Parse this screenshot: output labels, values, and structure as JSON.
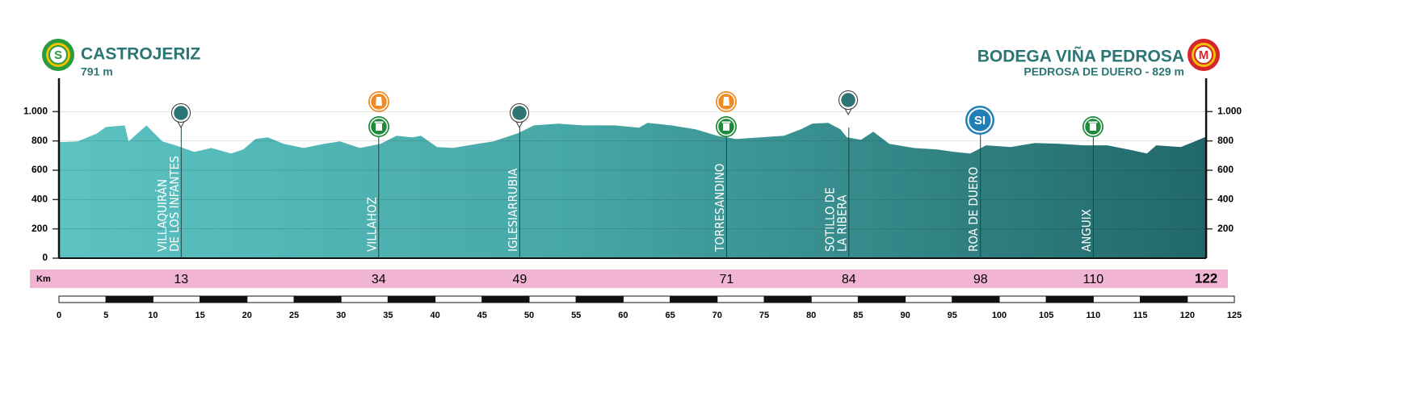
{
  "chart_data": {
    "type": "area",
    "start": {
      "badge": "S",
      "name": "CASTROJERIZ",
      "altitude_label": "791 m"
    },
    "finish": {
      "badge": "M",
      "name": "BODEGA VIÑA PEDROSA",
      "subtitle": "PEDROSA DE DUERO - 829 m",
      "km": 122
    },
    "x": [
      0,
      2.0,
      4.0,
      5.0,
      7.0,
      7.4,
      9.3,
      11.0,
      12.4,
      14.4,
      16.2,
      18.3,
      19.6,
      20.9,
      22.2,
      23.9,
      26.0,
      28.2,
      29.9,
      32.0,
      34.2,
      35.9,
      37.6,
      38.5,
      40.2,
      41.9,
      44.5,
      46.2,
      48.8,
      50.5,
      53.1,
      55.7,
      59.1,
      61.7,
      62.6,
      65.1,
      67.7,
      70.0,
      72.0,
      74.6,
      77.1,
      78.9,
      80.1,
      81.8,
      83.1,
      83.8,
      85.3,
      86.6,
      88.3,
      90.9,
      93.4,
      95.2,
      96.9,
      98.6,
      101.2,
      103.8,
      106.4,
      109.0,
      111.5,
      113.7,
      115.7,
      116.7,
      119.3,
      120.8,
      122
    ],
    "values": [
      791,
      797,
      850,
      895,
      906,
      797,
      906,
      797,
      770,
      725,
      752,
      714,
      742,
      813,
      824,
      780,
      752,
      780,
      797,
      752,
      780,
      835,
      824,
      835,
      758,
      752,
      780,
      797,
      852,
      906,
      918,
      906,
      906,
      890,
      923,
      906,
      879,
      835,
      813,
      824,
      835,
      879,
      918,
      923,
      879,
      824,
      808,
      863,
      780,
      752,
      742,
      725,
      714,
      770,
      758,
      786,
      780,
      770,
      770,
      742,
      714,
      770,
      758,
      797,
      829
    ],
    "xlim": [
      0,
      125
    ],
    "ylim": [
      0,
      1200
    ],
    "yticks": [
      0,
      200,
      400,
      600,
      800,
      {
        "value": 1000,
        "label": "1.000"
      }
    ],
    "y2ticks": [
      200,
      400,
      600,
      800,
      {
        "value": 1000,
        "label": "1.000"
      }
    ],
    "km_label": "Km",
    "sprint_label": "SI",
    "towns": [
      {
        "name": [
          "VILLAQUIRÁN",
          "DE LOS INFANTES"
        ],
        "km": 13
      },
      {
        "name": [
          "VILLAHOZ"
        ],
        "km": 34
      },
      {
        "name": [
          "IGLESIARRUBIA"
        ],
        "km": 49
      },
      {
        "name": [
          "TORRESANDINO"
        ],
        "km": 71
      },
      {
        "name": [
          "SOTILLO DE",
          "LA RIBERA"
        ],
        "km": 84
      },
      {
        "name": [
          "ROA DE DUERO"
        ],
        "km": 98
      },
      {
        "name": [
          "ANGUIX"
        ],
        "km": 110
      }
    ],
    "xticks": [
      0,
      5,
      10,
      15,
      20,
      25,
      30,
      35,
      40,
      45,
      50,
      55,
      60,
      65,
      70,
      75,
      80,
      85,
      90,
      95,
      100,
      105,
      110,
      115,
      120,
      125
    ]
  }
}
